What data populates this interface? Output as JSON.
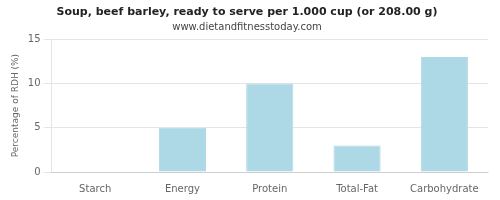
{
  "chart_data": {
    "type": "bar",
    "title": "Soup, beef barley, ready to serve per 1.000 cup (or 208.00 g)",
    "subtitle": "www.dietandfitnesstoday.com",
    "categories": [
      "Starch",
      "Energy",
      "Protein",
      "Total-Fat",
      "Carbohydrate"
    ],
    "values": [
      0,
      5,
      10,
      3,
      13
    ],
    "color": "#add8e6",
    "ylabel": "Percentage of RDH (%)",
    "ylim": [
      0,
      15
    ],
    "yticks": [
      0,
      5,
      10,
      15
    ],
    "grid": "y"
  }
}
